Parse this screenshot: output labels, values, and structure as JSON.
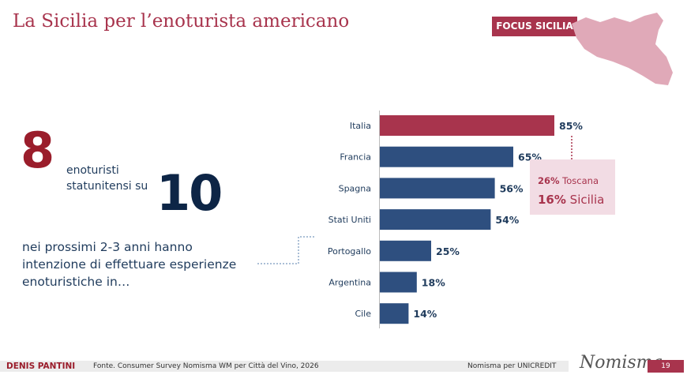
{
  "header": {
    "title": "La Sicilia per l’enoturista americano",
    "badge": "FOCUS SICILIA"
  },
  "headline": {
    "big_number": "8",
    "middle_text": "enoturisti statunitensi su",
    "denominator": "10",
    "paragraph": "nei prossimi 2-3 anni hanno intenzione di effettuare esperienze enoturistiche in…"
  },
  "callout": {
    "line1_value": "26%",
    "line1_label": " Toscana",
    "line2_value": "16%",
    "line2_label": " Sicilia"
  },
  "colors": {
    "accent": "#a8344d",
    "bar": "#2e4f7f",
    "highlight_bar": "#a8344d",
    "callout_bg": "#f2dce4",
    "map_fill": "#e0a9b8"
  },
  "chart_data": {
    "type": "bar",
    "orientation": "horizontal",
    "categories": [
      "Italia",
      "Francia",
      "Spagna",
      "Stati Uniti",
      "Portogallo",
      "Argentina",
      "Cile"
    ],
    "values": [
      85,
      65,
      56,
      54,
      25,
      18,
      14
    ],
    "value_labels": [
      "85%",
      "65%",
      "56%",
      "54%",
      "25%",
      "18%",
      "14%"
    ],
    "highlighted": "Italia",
    "xlim": [
      0,
      100
    ],
    "title": "",
    "xlabel": "",
    "ylabel": ""
  },
  "footer": {
    "author": "DENIS PANTINI",
    "source": "Fonte. Consumer Survey Nomisma WM per Città del Vino, 2026",
    "partner": "Nomisma per UNICREDIT",
    "logo": "Nomisma",
    "page": "19"
  }
}
